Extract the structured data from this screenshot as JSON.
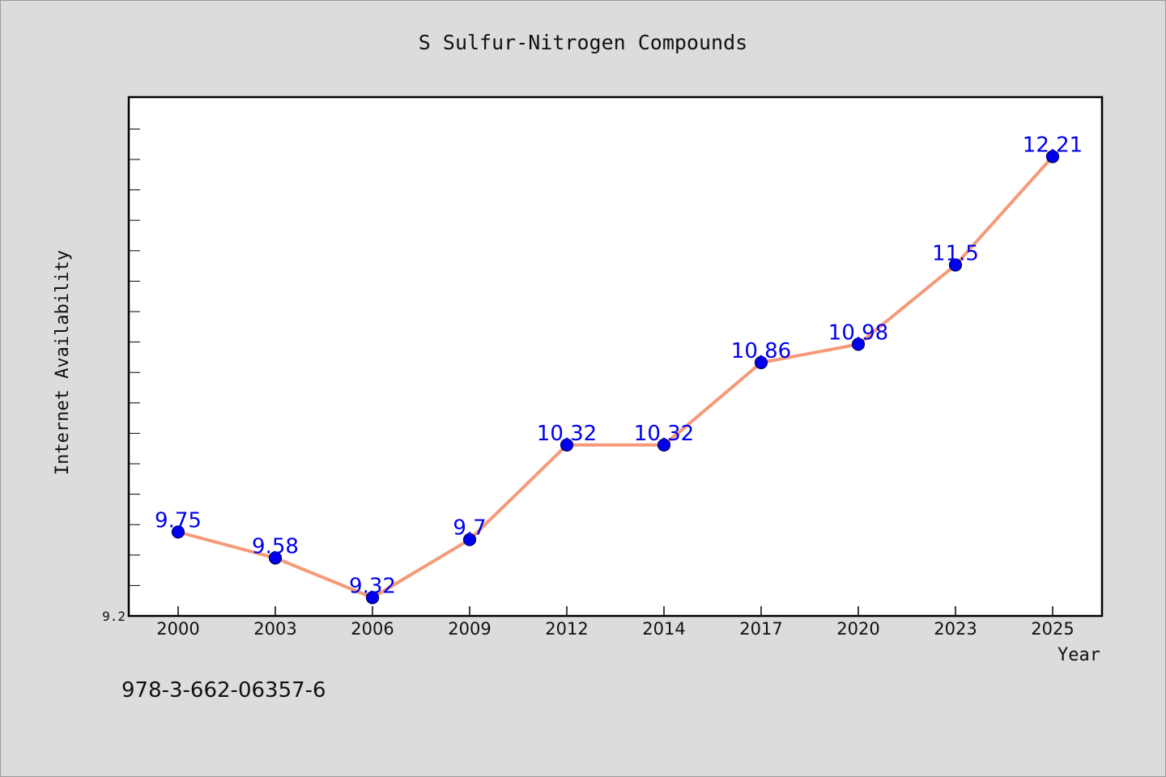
{
  "chart_data": {
    "type": "line",
    "title": "S Sulfur-Nitrogen Compounds",
    "xlabel": "Year",
    "ylabel": "Internet Availability",
    "categories": [
      "2000",
      "2003",
      "2006",
      "2009",
      "2012",
      "2014",
      "2017",
      "2020",
      "2023",
      "2025"
    ],
    "series": [
      {
        "values": [
          9.75,
          9.58,
          9.32,
          9.7,
          10.32,
          10.32,
          10.86,
          10.98,
          11.5,
          12.21
        ],
        "labels": [
          "9.75",
          "9.58",
          "9.32",
          "9.7",
          "10.32",
          "10.32",
          "10.86",
          "10.98",
          "11.5",
          "12.21"
        ]
      }
    ],
    "ylim": [
      9.2,
      12.6
    ],
    "yticks_labeled": [
      "9.2"
    ],
    "grid": false,
    "legend": "none",
    "colors": {
      "line": "#f59a78",
      "marker": "#0000ee",
      "marker_edge": "#000066",
      "data_label": "#0000ee",
      "plot_bg": "#ffffff",
      "figure_bg": "#dcdcdc"
    }
  },
  "footer": {
    "isbn": "978-3-662-06357-6"
  }
}
